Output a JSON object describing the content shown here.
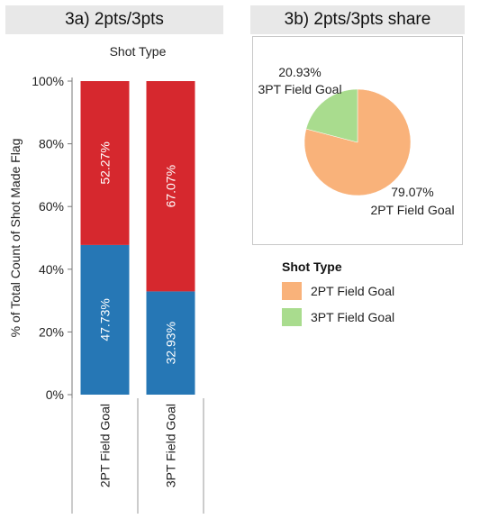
{
  "panel_a": {
    "title": "3a) 2pts/3pts"
  },
  "panel_b": {
    "title": "3b) 2pts/3pts share"
  },
  "legend": {
    "title": "Shot Type",
    "items": [
      {
        "label": "2PT Field Goal",
        "color": "#f9b27a"
      },
      {
        "label": "3PT Field Goal",
        "color": "#a9dc8e"
      }
    ]
  },
  "chart_data": [
    {
      "type": "bar",
      "stacked": true,
      "title": "3a) 2pts/3pts",
      "column_header": "Shot Type",
      "categories": [
        "2PT Field Goal",
        "3PT Field Goal"
      ],
      "series": [
        {
          "values": [
            47.73,
            32.93
          ],
          "labels": [
            "47.73%",
            "32.93%"
          ],
          "color": "#2677b5"
        },
        {
          "values": [
            52.27,
            67.07
          ],
          "labels": [
            "52.27%",
            "67.07%"
          ],
          "color": "#d6282e"
        }
      ],
      "ylabel": "% of Total Count of Shot Made Flag",
      "ylim": [
        0,
        100
      ],
      "yticks": [
        "0%",
        "20%",
        "40%",
        "60%",
        "80%",
        "100%"
      ],
      "grid": false
    },
    {
      "type": "pie",
      "title": "3b) 2pts/3pts share",
      "slices": [
        {
          "label": "2PT Field Goal",
          "value": 79.07,
          "value_label": "79.07%",
          "color": "#f9b27a"
        },
        {
          "label": "3PT Field Goal",
          "value": 20.93,
          "value_label": "20.93%",
          "color": "#a9dc8e"
        }
      ],
      "legend_position": "bottom"
    }
  ]
}
